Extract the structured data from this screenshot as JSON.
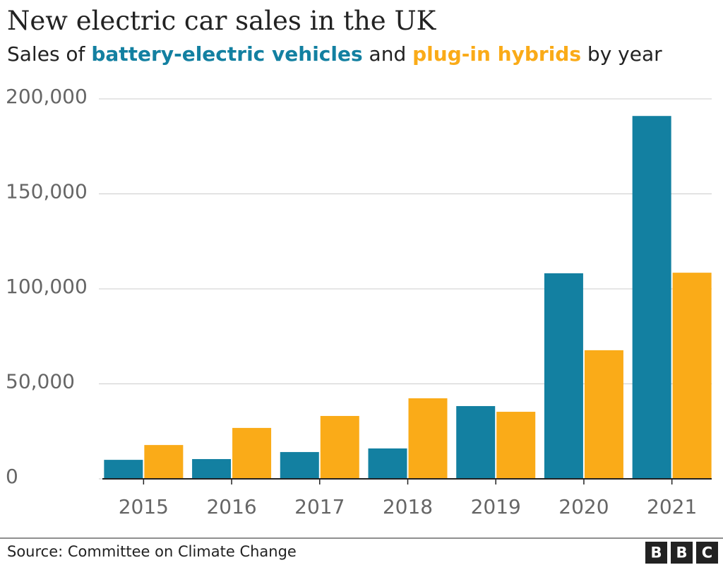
{
  "chart_data": {
    "type": "bar",
    "title": "New electric car sales in the UK",
    "subtitle_parts": [
      "Sales of ",
      " and ",
      " by year"
    ],
    "categories": [
      "2015",
      "2016",
      "2017",
      "2018",
      "2019",
      "2020",
      "2021"
    ],
    "series": [
      {
        "name": "battery-electric vehicles",
        "color": "#1380A1",
        "values": [
          10000,
          10400,
          14100,
          16000,
          38300,
          108200,
          191000
        ]
      },
      {
        "name": "plug-in hybrids",
        "color": "#FAAB18",
        "values": [
          17800,
          26800,
          33100,
          42400,
          35300,
          67700,
          108500
        ]
      }
    ],
    "ylim": [
      0,
      200000
    ],
    "yticks": [
      0,
      {
        "value": 50000,
        "label": "50,000"
      },
      {
        "value": 100000,
        "label": "100,000"
      },
      {
        "value": 150000,
        "label": "150,000"
      },
      {
        "value": 200000,
        "label": "200,000"
      }
    ],
    "grid": true,
    "source": "Source: Committee on Climate Change",
    "logo": [
      "B",
      "B",
      "C"
    ]
  }
}
